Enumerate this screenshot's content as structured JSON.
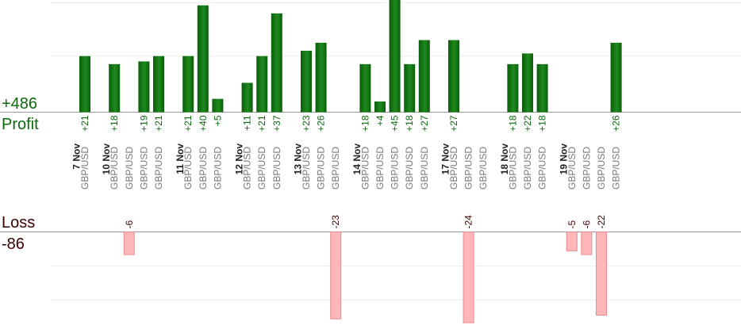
{
  "summary": {
    "profit_total": "+486",
    "profit_label": "Profit",
    "loss_label": "Loss",
    "loss_total": "-86"
  },
  "colors": {
    "profit_bar_dark": "#0b5e0b",
    "profit_bar_light": "#1e8a1e",
    "profit_text": "#0a6a0a",
    "loss_bar_fill": "#ffb6b9",
    "loss_bar_stroke": "#e88a8f",
    "loss_text": "#3a0000",
    "pair_text": "#777777",
    "date_text": "#222222",
    "axis": "#999999",
    "grid": "#eeeeee"
  },
  "chart_data": {
    "type": "bar",
    "profit_axis_max": 42,
    "loss_axis_max": 24,
    "profit_grid_values": [
      21,
      41
    ],
    "loss_grid_values": [
      9,
      18
    ],
    "columns": [
      {
        "date": "7 Nov",
        "pair": "GBP/USD",
        "value": 21
      },
      {
        "date": "",
        "pair": "",
        "value": 0
      },
      {
        "date": "10 Nov",
        "pair": "GBP/USD",
        "value": 18
      },
      {
        "date": "",
        "pair": "GBP/USD",
        "value": -6
      },
      {
        "date": "",
        "pair": "GBP/USD",
        "value": 19
      },
      {
        "date": "",
        "pair": "GBP/USD",
        "value": 21
      },
      {
        "date": "",
        "pair": "",
        "value": 0
      },
      {
        "date": "11 Nov",
        "pair": "GBP/USD",
        "value": 21
      },
      {
        "date": "",
        "pair": "GBP/USD",
        "value": 40
      },
      {
        "date": "",
        "pair": "GBP/USD",
        "value": 5
      },
      {
        "date": "",
        "pair": "",
        "value": 0
      },
      {
        "date": "12 Nov",
        "pair": "GBP/USD",
        "value": 11
      },
      {
        "date": "",
        "pair": "GBP/USD",
        "value": 21
      },
      {
        "date": "",
        "pair": "GBP/USD",
        "value": 37
      },
      {
        "date": "",
        "pair": "",
        "value": 0
      },
      {
        "date": "13 Nov",
        "pair": "GBP/USD",
        "value": 23
      },
      {
        "date": "",
        "pair": "GBP/USD",
        "value": 26
      },
      {
        "date": "",
        "pair": "GBP/USD",
        "value": -23
      },
      {
        "date": "",
        "pair": "",
        "value": 0
      },
      {
        "date": "14 Nov",
        "pair": "GBP/USD",
        "value": 18
      },
      {
        "date": "",
        "pair": "GBP/USD",
        "value": 4
      },
      {
        "date": "",
        "pair": "GBP/USD",
        "value": 45
      },
      {
        "date": "",
        "pair": "GBP/USD",
        "value": 18
      },
      {
        "date": "",
        "pair": "GBP/USD",
        "value": 27
      },
      {
        "date": "",
        "pair": "",
        "value": 0
      },
      {
        "date": "17 Nov",
        "pair": "GBP/USD",
        "value": 27
      },
      {
        "date": "",
        "pair": "GBP/USD",
        "value": -24
      },
      {
        "date": "",
        "pair": "GBP/USD",
        "value": 0
      },
      {
        "date": "",
        "pair": "",
        "value": 0
      },
      {
        "date": "18 Nov",
        "pair": "GBP/USD",
        "value": 18
      },
      {
        "date": "",
        "pair": "GBP/USD",
        "value": 22
      },
      {
        "date": "",
        "pair": "GBP/USD",
        "value": 18
      },
      {
        "date": "",
        "pair": "",
        "value": 0
      },
      {
        "date": "19 Nov",
        "pair": "GBP/USD",
        "value": -5
      },
      {
        "date": "",
        "pair": "GBP/USD",
        "value": -6
      },
      {
        "date": "",
        "pair": "GBP/USD",
        "value": -22
      },
      {
        "date": "",
        "pair": "GBP/USD",
        "value": 26
      }
    ]
  }
}
